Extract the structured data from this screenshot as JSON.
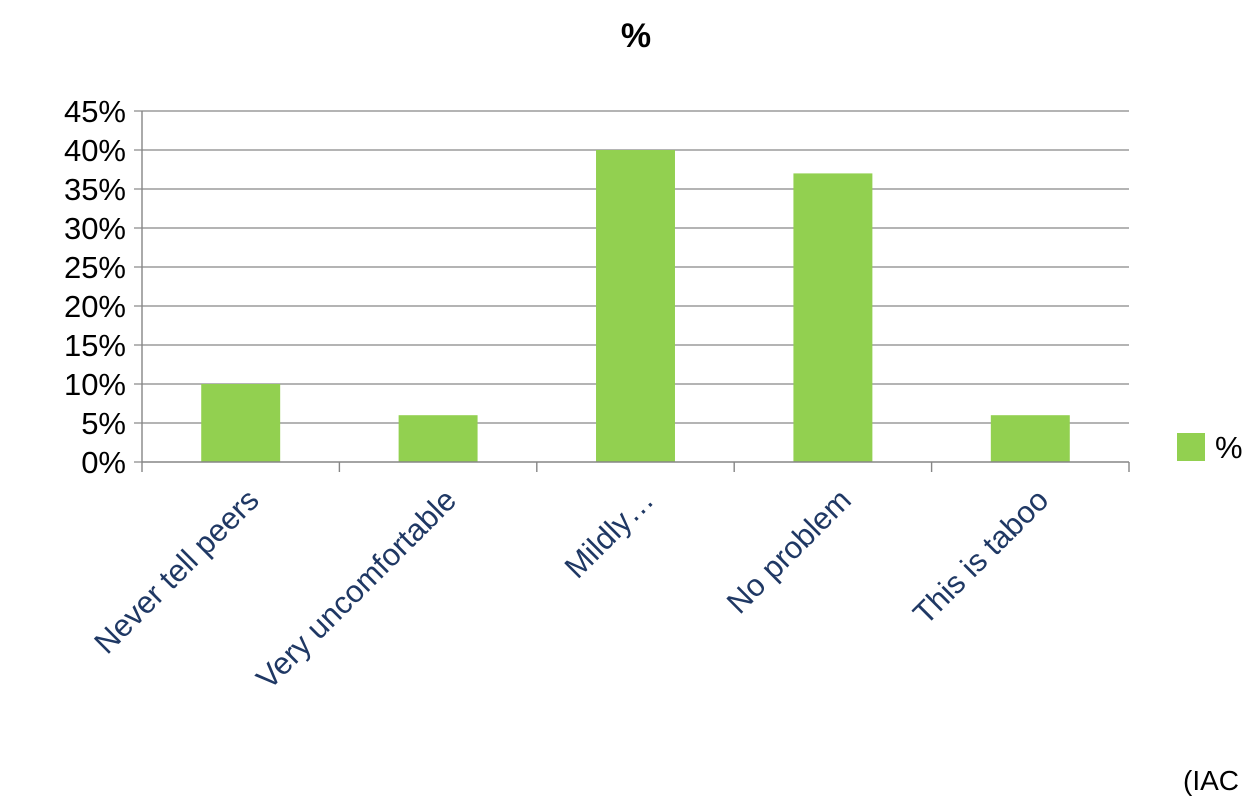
{
  "chart_data": {
    "type": "bar",
    "title": "%",
    "categories": [
      "Never tell peers",
      "Very uncomfortable",
      "Mildly…",
      "No problem",
      "This is taboo"
    ],
    "series": [
      {
        "name": "%",
        "values": [
          10,
          6,
          40,
          37,
          6
        ],
        "color": "#92d050"
      }
    ],
    "xlabel": "",
    "ylabel": "",
    "ylim": [
      0,
      45
    ],
    "yticks": [
      0,
      5,
      10,
      15,
      20,
      25,
      30,
      35,
      40,
      45
    ],
    "ytick_format": "percent",
    "grid": true,
    "legend_position": "right",
    "colors": {
      "bar": "#92d050",
      "grid": "#868686",
      "xtick_text": "#1f3864"
    }
  },
  "footer": {
    "source_note": "(IAC"
  }
}
